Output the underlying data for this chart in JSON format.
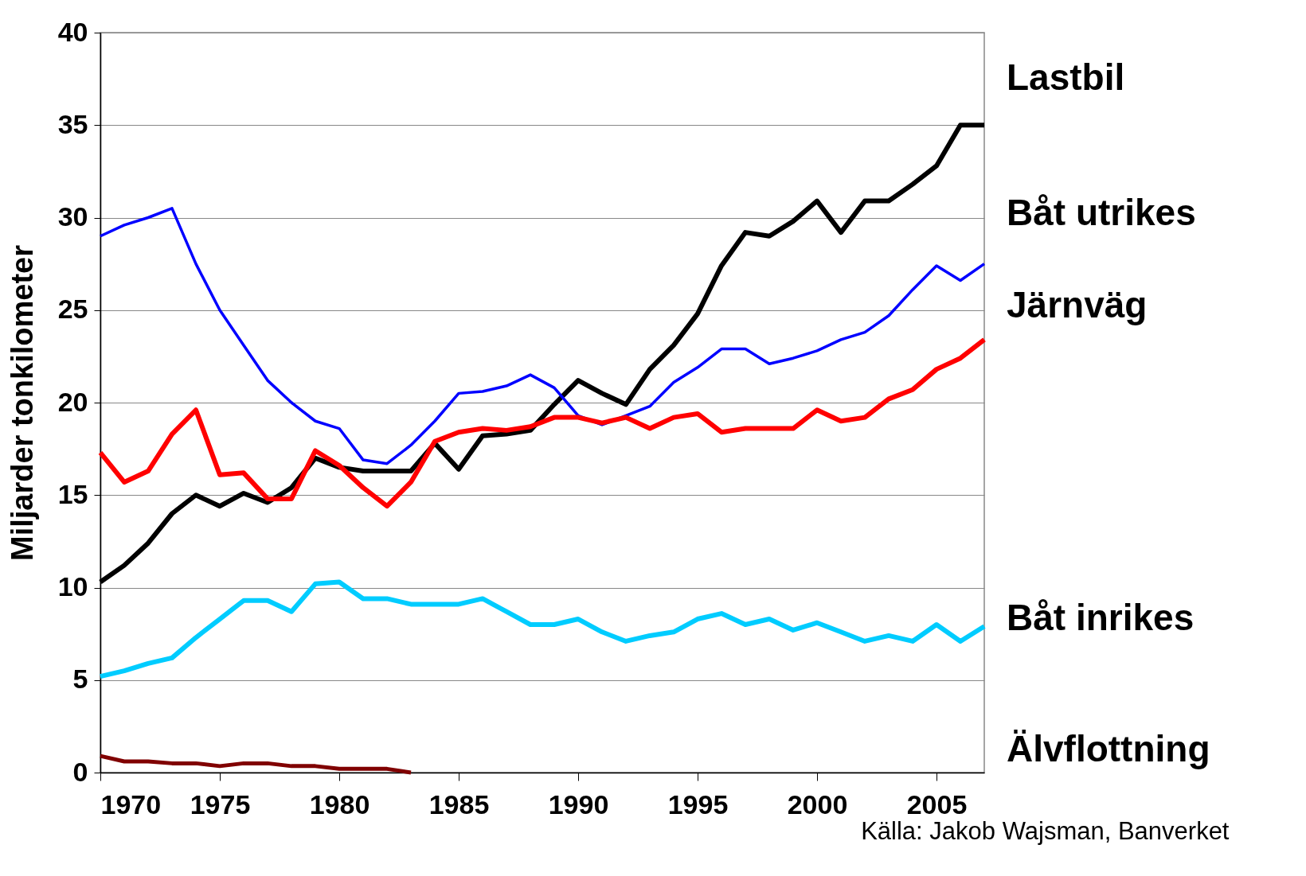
{
  "chart_data": {
    "type": "line",
    "ylabel": "Miljarder tonkilometer",
    "x": [
      1970,
      1971,
      1972,
      1973,
      1974,
      1975,
      1976,
      1977,
      1978,
      1979,
      1980,
      1981,
      1982,
      1983,
      1984,
      1985,
      1986,
      1987,
      1988,
      1989,
      1990,
      1991,
      1992,
      1993,
      1994,
      1995,
      1996,
      1997,
      1998,
      1999,
      2000,
      2001,
      2002,
      2003,
      2004,
      2005,
      2006,
      2007
    ],
    "series": [
      {
        "name": "Lastbil",
        "color": "#000000",
        "values": [
          10.3,
          11.2,
          12.4,
          14.0,
          15.0,
          14.4,
          15.1,
          14.6,
          15.4,
          17.0,
          16.5,
          16.3,
          16.3,
          16.3,
          17.8,
          16.4,
          18.2,
          18.3,
          18.5,
          19.9,
          21.2,
          20.5,
          19.9,
          21.8,
          23.1,
          24.8,
          27.4,
          29.2,
          29.0,
          29.8,
          30.9,
          29.2,
          30.9,
          30.9,
          31.8,
          32.8,
          35.0,
          35.0
        ]
      },
      {
        "name": "Båt utrikes",
        "color": "#0000ff",
        "values": [
          29.0,
          29.6,
          30.0,
          30.5,
          27.5,
          25.0,
          23.1,
          21.2,
          20.0,
          19.0,
          18.6,
          16.9,
          16.7,
          17.7,
          19.0,
          20.5,
          20.6,
          20.9,
          21.5,
          20.8,
          19.3,
          18.8,
          19.3,
          19.8,
          21.1,
          21.9,
          22.9,
          22.9,
          22.1,
          22.4,
          22.8,
          23.4,
          23.8,
          24.7,
          26.1,
          27.4,
          26.6,
          27.5
        ]
      },
      {
        "name": "Järnväg",
        "color": "#ff0000",
        "values": [
          17.3,
          15.7,
          16.3,
          18.3,
          19.6,
          16.1,
          16.2,
          14.8,
          14.8,
          17.4,
          16.6,
          15.4,
          14.4,
          15.7,
          17.9,
          18.4,
          18.6,
          18.5,
          18.7,
          19.2,
          19.2,
          18.9,
          19.2,
          18.6,
          19.2,
          19.4,
          18.4,
          18.6,
          18.6,
          18.6,
          19.6,
          19.0,
          19.2,
          20.2,
          20.7,
          21.8,
          22.4,
          23.4
        ]
      },
      {
        "name": "Båt inrikes",
        "color": "#00ccff",
        "values": [
          5.2,
          5.5,
          5.9,
          6.2,
          7.3,
          8.3,
          9.3,
          9.3,
          8.7,
          10.2,
          10.3,
          9.4,
          9.4,
          9.1,
          9.1,
          9.1,
          9.4,
          8.7,
          8.0,
          8.0,
          8.3,
          7.6,
          7.1,
          7.4,
          7.6,
          8.3,
          8.6,
          8.0,
          8.3,
          7.7,
          8.1,
          7.6,
          7.1,
          7.4,
          7.1,
          8.0,
          7.1,
          7.9
        ]
      },
      {
        "name": "Älvflottning",
        "color": "#800000",
        "values": [
          0.9,
          0.6,
          0.6,
          0.5,
          0.5,
          0.35,
          0.5,
          0.5,
          0.35,
          0.35,
          0.2,
          0.2,
          0.2,
          0.0,
          null,
          null,
          null,
          null,
          null,
          null,
          null,
          null,
          null,
          null,
          null,
          null,
          null,
          null,
          null,
          null,
          null,
          null,
          null,
          null,
          null,
          null,
          null,
          null
        ]
      }
    ],
    "xlim": [
      1970,
      2007
    ],
    "xticks": [
      1970,
      1975,
      1980,
      1985,
      1990,
      1995,
      2000,
      2005
    ],
    "ylim": [
      0,
      40
    ],
    "yticks": [
      0,
      5,
      10,
      15,
      20,
      25,
      30,
      35,
      40
    ],
    "grid": "y",
    "annotations": [
      "Källa: Jakob Wajsman, Banverket"
    ]
  }
}
